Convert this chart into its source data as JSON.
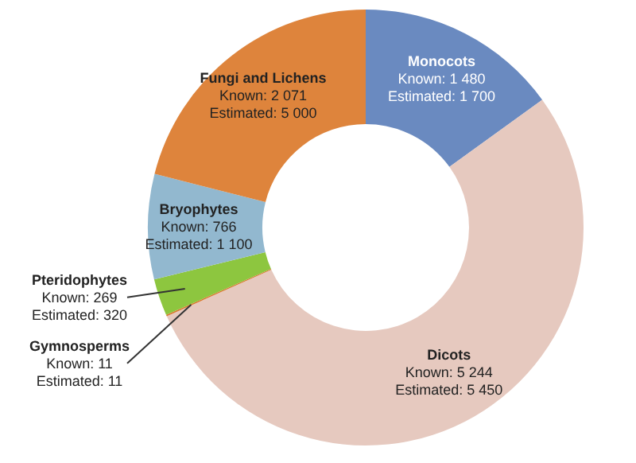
{
  "chart_data": {
    "type": "donut",
    "categories": [
      "Monocots",
      "Dicots",
      "Gymnosperms",
      "Pteridophytes",
      "Bryophytes",
      "Fungi and Lichens"
    ],
    "values": [
      1480,
      5244,
      11,
      269,
      766,
      2071
    ],
    "colors": [
      "#6a8ac0",
      "#e6c9bf",
      "#d9782f",
      "#8dc63f",
      "#92b8cf",
      "#de843c"
    ],
    "value_labels": [
      "Known: 1 480",
      "Known: 5 244",
      "Known: 11",
      "Known: 269",
      "Known: 766",
      "Known: 2 071"
    ],
    "annotations": [
      "Estimated: 1 700",
      "Estimated: 5 450",
      "Estimated: 11",
      "Estimated: 320",
      "Estimated: 1 100",
      "Estimated: 5 000"
    ]
  }
}
